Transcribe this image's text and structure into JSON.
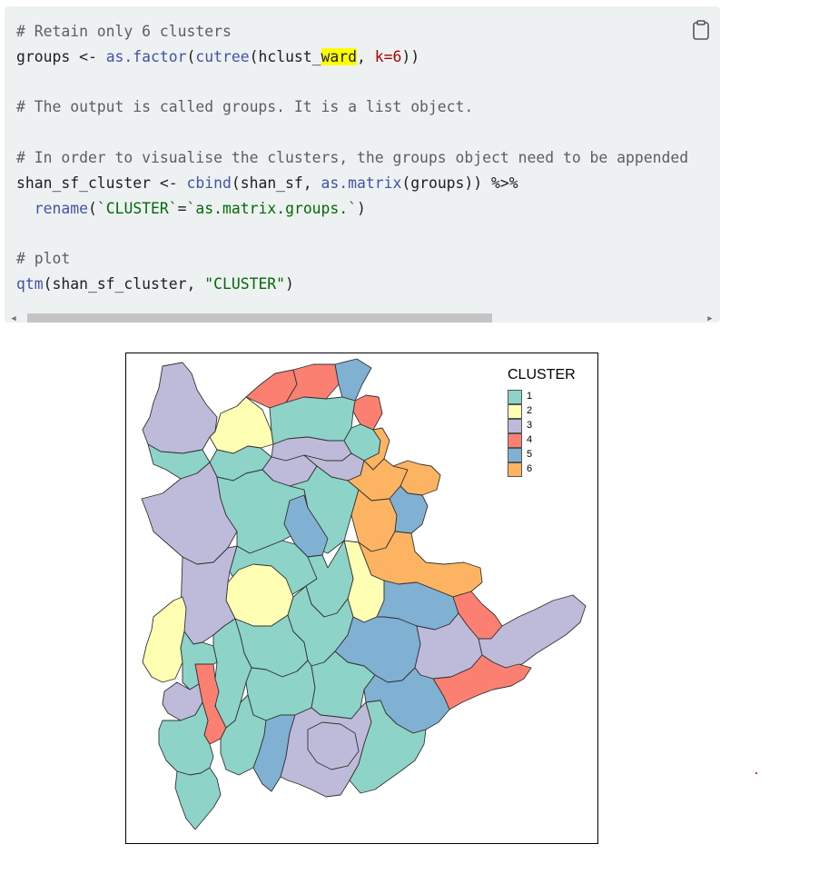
{
  "code": {
    "line1": "# Retain only 6 clusters",
    "line2a": "groups <- ",
    "line2b": "as.factor",
    "line2c": "(",
    "line2d": "cutree",
    "line2e": "(hclust_",
    "line2f": "ward",
    "line2g": ", ",
    "line2h": "k=",
    "line2i": "6",
    "line2j": "))",
    "line4": "# The output is called groups. It is a list object.",
    "line6": "# In order to visualise the clusters, the groups object need to be appended",
    "line7a": "shan_sf_cluster <- ",
    "line7b": "cbind",
    "line7c": "(shan_sf, ",
    "line7d": "as.matrix",
    "line7e": "(groups)) %>%",
    "line8a": "  ",
    "line8b": "rename",
    "line8c": "(",
    "line8d": "`CLUSTER`",
    "line8e": "=",
    "line8f": "`as.matrix.groups.`",
    "line8g": ")",
    "line10": "# plot",
    "line11a": "qtm",
    "line11b": "(shan_sf_cluster, ",
    "line11c": "\"CLUSTER\"",
    "line11d": ")"
  },
  "copy_icon": "clipboard-icon",
  "scrollbar": {
    "left_arrow": "◀",
    "right_arrow": "▶"
  },
  "legend": {
    "title": "CLUSTER",
    "items": [
      {
        "label": "1",
        "color": "#8dd3c7"
      },
      {
        "label": "2",
        "color": "#ffffb3"
      },
      {
        "label": "3",
        "color": "#bebada"
      },
      {
        "label": "4",
        "color": "#fb8072"
      },
      {
        "label": "5",
        "color": "#80b1d3"
      },
      {
        "label": "6",
        "color": "#fdb462"
      }
    ]
  }
}
